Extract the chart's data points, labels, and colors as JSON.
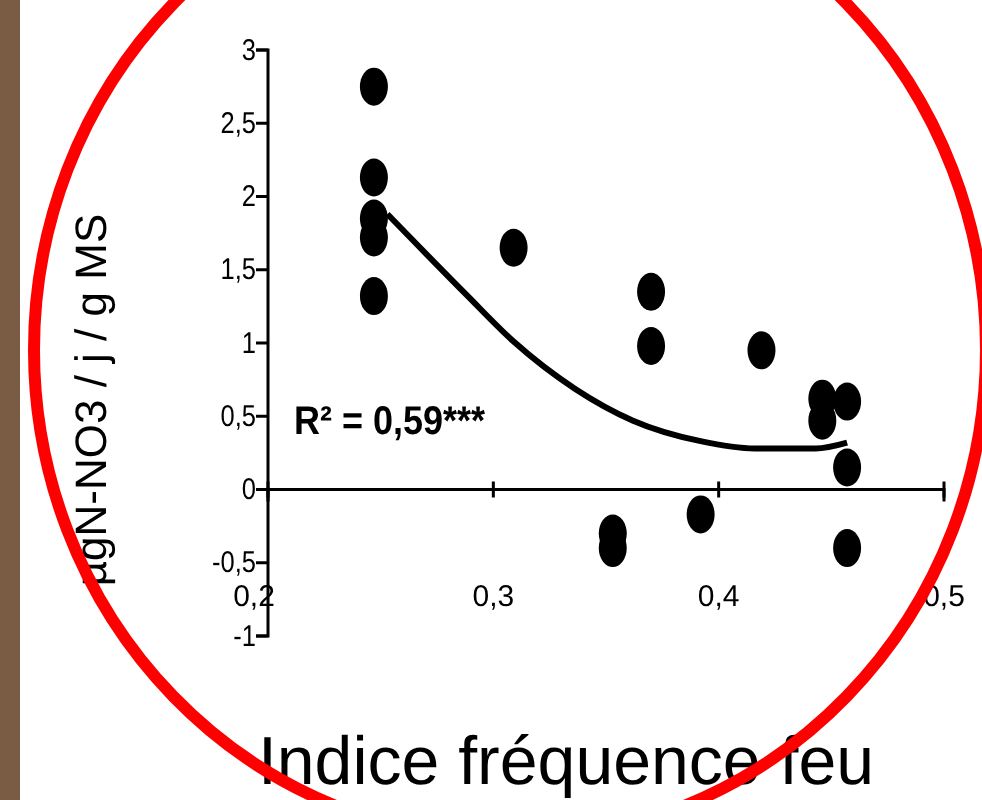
{
  "chart_data": {
    "type": "scatter",
    "xlabel": "Indice fréquence feu",
    "ylabel": "µgN-NO3 / j / g MS",
    "xlim": [
      0.2,
      0.5
    ],
    "ylim": [
      -1,
      3
    ],
    "xticks": [
      {
        "value": 0.2,
        "label": "0,2"
      },
      {
        "value": 0.3,
        "label": "0,3"
      },
      {
        "value": 0.4,
        "label": "0,4"
      },
      {
        "value": 0.5,
        "label": "0,5"
      }
    ],
    "yticks": [
      {
        "value": -1,
        "label": "-1"
      },
      {
        "value": -0.5,
        "label": "-0,5"
      },
      {
        "value": 0,
        "label": "0"
      },
      {
        "value": 0.5,
        "label": "0,5"
      },
      {
        "value": 1,
        "label": "1"
      },
      {
        "value": 1.5,
        "label": "1,5"
      },
      {
        "value": 2,
        "label": "2"
      },
      {
        "value": 2.5,
        "label": "2,5"
      },
      {
        "value": 3,
        "label": "3"
      }
    ],
    "grid": false,
    "series": [
      {
        "marker": "circle",
        "color": "#000000",
        "x": [
          0.247,
          0.247,
          0.247,
          0.247,
          0.247,
          0.309,
          0.37,
          0.37,
          0.353,
          0.353,
          0.392,
          0.419,
          0.446,
          0.446,
          0.457,
          0.457,
          0.457
        ],
        "values": [
          2.75,
          2.13,
          1.85,
          1.72,
          1.32,
          1.65,
          1.35,
          0.98,
          -0.3,
          -0.4,
          -0.17,
          0.95,
          0.62,
          0.47,
          0.6,
          0.15,
          -0.4
        ]
      },
      {
        "type": "line",
        "marker": "none",
        "line_style": "solid",
        "color": "#000000",
        "x": [
          0.253,
          0.288,
          0.309,
          0.336,
          0.362,
          0.392,
          0.416,
          0.443,
          0.457
        ],
        "values": [
          1.88,
          1.33,
          1.01,
          0.69,
          0.47,
          0.33,
          0.28,
          0.28,
          0.32
        ]
      }
    ],
    "annotations": [
      "R² = 0,59***"
    ]
  }
}
